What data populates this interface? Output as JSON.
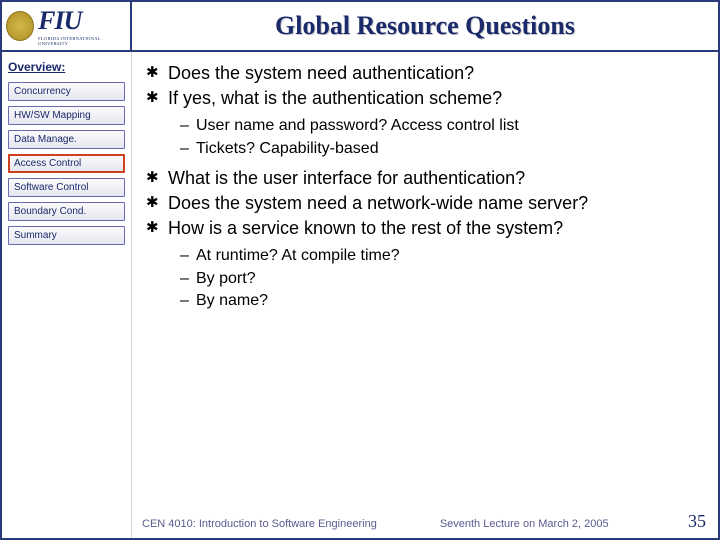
{
  "colors": {
    "frame": "#2a3a7a",
    "title": "#1a2a6a",
    "nav_border": "#6a6ab0",
    "nav_active_border": "#cc4020",
    "footer_text": "#5a5a90"
  },
  "logo": {
    "text": "FIU",
    "subtitle": "FLORIDA INTERNATIONAL UNIVERSITY"
  },
  "title": "Global Resource Questions",
  "sidebar": {
    "heading": "Overview:",
    "items": [
      {
        "label": "Concurrency",
        "active": false
      },
      {
        "label": "HW/SW Mapping",
        "active": false
      },
      {
        "label": "Data Manage.",
        "active": false
      },
      {
        "label": "Access Control",
        "active": true
      },
      {
        "label": "Software Control",
        "active": false
      },
      {
        "label": "Boundary Cond.",
        "active": false
      },
      {
        "label": "Summary",
        "active": false
      }
    ]
  },
  "content": {
    "bullets": [
      "Does the system need authentication?",
      "If yes, what is the authentication scheme?"
    ],
    "sub1": [
      "User name and password? Access control list",
      "Tickets? Capability-based"
    ],
    "bullets2": [
      "What is the user interface for authentication?",
      "Does the system need a network-wide name server?",
      "How is a service known to the rest of the system?"
    ],
    "sub2": [
      "At runtime? At compile time?",
      "By port?",
      "By name?"
    ]
  },
  "footer": {
    "course": "CEN 4010: Introduction to Software Engineering",
    "lecture": "Seventh Lecture on March 2, 2005",
    "page": "35"
  }
}
